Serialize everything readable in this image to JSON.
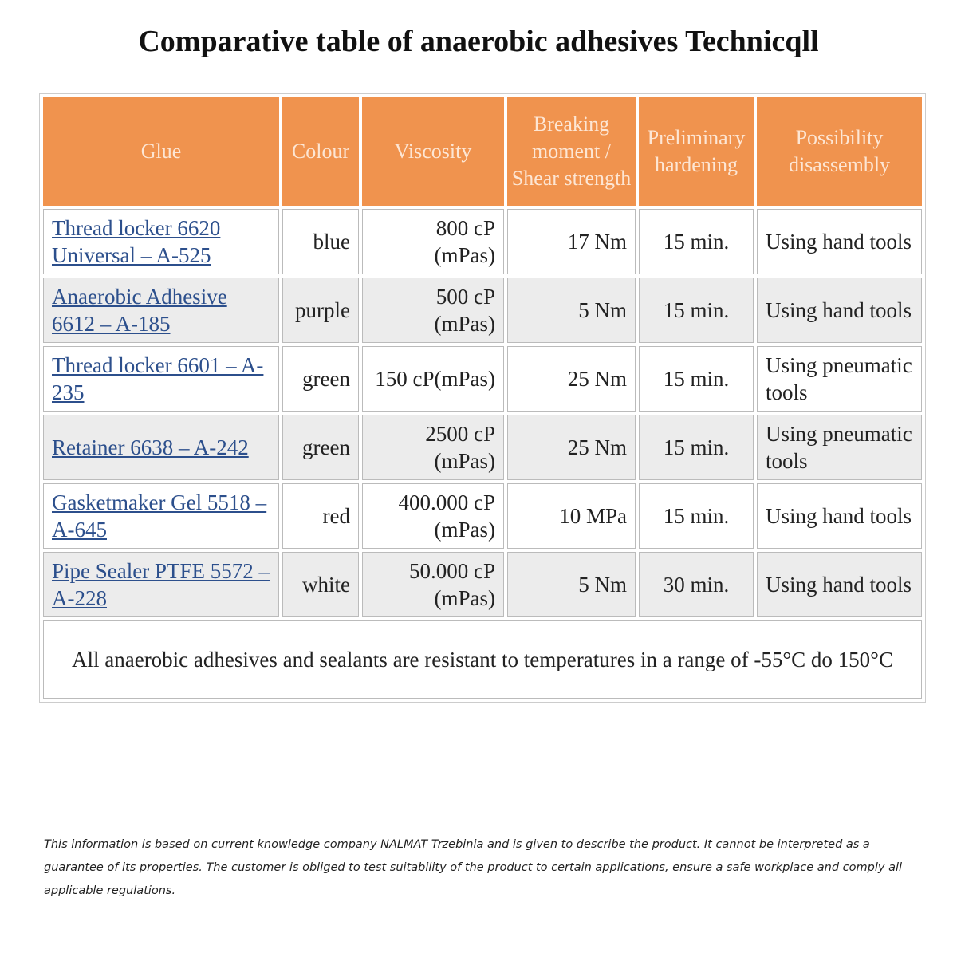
{
  "header": {
    "title": "Comparative table of anaerobic adhesives Technicqll"
  },
  "table": {
    "columns": [
      "Glue",
      "Colour",
      "Viscosity",
      "Breaking moment / Shear strength",
      "Preliminary hardening",
      "Possibility disassembly"
    ],
    "rows": [
      [
        "Thread locker 6620 Universal – A-525",
        "blue",
        "800 cP (mPas)",
        "17 Nm",
        "15 min.",
        "Using hand tools"
      ],
      [
        "Anaerobic Adhesive 6612 – A-185",
        "purple",
        "500 cP (mPas)",
        "5 Nm",
        "15 min.",
        "Using hand tools"
      ],
      [
        "Thread locker 6601 – A-235",
        "green",
        "150 cP(mPas)",
        "25 Nm",
        "15 min.",
        "Using pneumatic tools"
      ],
      [
        "Retainer 6638 – A-242",
        "green",
        "2500 cP (mPas)",
        "25 Nm",
        "15 min.",
        "Using pneumatic tools"
      ],
      [
        "Gasketmaker Gel 5518 – A-645",
        "red",
        "400.000 cP (mPas)",
        "10 MPa",
        "15 min.",
        "Using hand tools"
      ],
      [
        "Pipe Sealer PTFE 5572 – A-228",
        "white",
        "50.000 cP (mPas)",
        "5 Nm",
        "30 min.",
        "Using hand tools"
      ]
    ],
    "footer": "All anaerobic adhesives and sealants are resistant to temperatures in a range of -55°C do 150°C"
  },
  "disclaimer": "This information is based on current knowledge company NALMAT Trzebinia and is given to describe the product. It cannot be interpreted as a guarantee of its properties. The customer is obliged to test suitability of the product to certain applications, ensure a safe workplace and comply all applicable regulations."
}
